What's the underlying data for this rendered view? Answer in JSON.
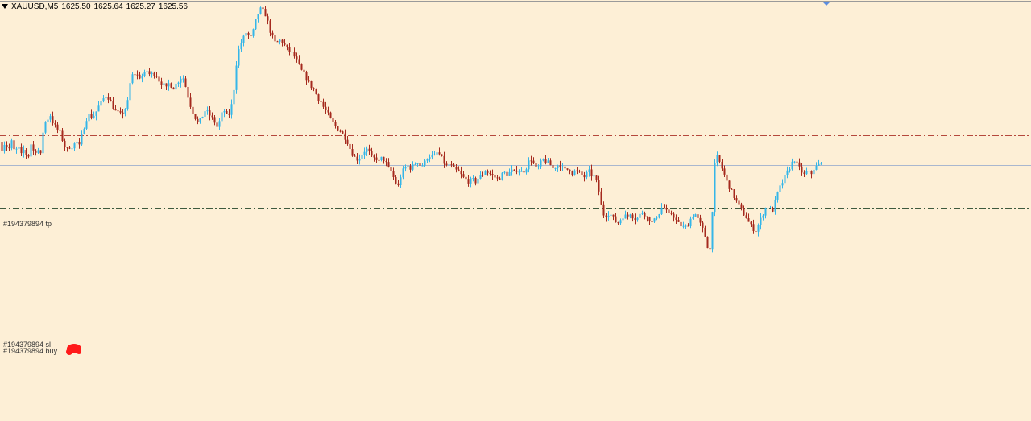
{
  "header": {
    "symbol": "XAUUSD,M5",
    "open": "1625.50",
    "high": "1625.64",
    "low": "1625.27",
    "close": "1625.56"
  },
  "colors": {
    "background": "#fdefd6",
    "bull": "#35b6e8",
    "bear": "#a52a1e",
    "tp_line": "#b5483c",
    "sl_line": "#b5483c",
    "buy_line": "#3e5a3e",
    "bid_line": "#a9b7cf",
    "marker": "#ff1a1a"
  },
  "chart_data": {
    "type": "candlestick",
    "y_scale": {
      "price_top": 1633.0,
      "price_bottom": 1614.0
    },
    "lines": [
      {
        "name": "tp",
        "label": "#194379894 tp",
        "price": 1626.9
      },
      {
        "name": "sl",
        "label": "#194379894 sl",
        "price": 1623.8
      },
      {
        "name": "buy",
        "label": "#194379894 buy",
        "price": 1623.6
      },
      {
        "name": "bid",
        "label": "",
        "price": 1625.56
      }
    ],
    "path": [
      [
        0,
        1626.6
      ],
      [
        4,
        1626.3
      ],
      [
        8,
        1626.6
      ],
      [
        12,
        1626.2
      ],
      [
        16,
        1626.6
      ],
      [
        20,
        1626.1
      ],
      [
        24,
        1626.4
      ],
      [
        28,
        1626.0
      ],
      [
        32,
        1626.3
      ],
      [
        36,
        1625.8
      ],
      [
        40,
        1626.5
      ],
      [
        44,
        1626.1
      ],
      [
        48,
        1626.3
      ],
      [
        52,
        1626.0
      ],
      [
        56,
        1627.4
      ],
      [
        60,
        1627.6
      ],
      [
        64,
        1627.8
      ],
      [
        68,
        1627.4
      ],
      [
        72,
        1627.2
      ],
      [
        76,
        1627.0
      ],
      [
        80,
        1626.6
      ],
      [
        84,
        1626.2
      ],
      [
        88,
        1626.4
      ],
      [
        92,
        1626.4
      ],
      [
        96,
        1626.6
      ],
      [
        100,
        1626.4
      ],
      [
        104,
        1627.0
      ],
      [
        108,
        1627.6
      ],
      [
        112,
        1627.8
      ],
      [
        116,
        1627.7
      ],
      [
        120,
        1627.9
      ],
      [
        124,
        1628.2
      ],
      [
        128,
        1628.4
      ],
      [
        132,
        1628.7
      ],
      [
        136,
        1628.6
      ],
      [
        140,
        1628.3
      ],
      [
        144,
        1628.0
      ],
      [
        148,
        1627.9
      ],
      [
        152,
        1627.8
      ],
      [
        156,
        1628.0
      ],
      [
        160,
        1628.4
      ],
      [
        164,
        1629.5
      ],
      [
        168,
        1629.7
      ],
      [
        172,
        1629.6
      ],
      [
        176,
        1629.5
      ],
      [
        180,
        1629.6
      ],
      [
        184,
        1629.8
      ],
      [
        188,
        1629.6
      ],
      [
        192,
        1629.7
      ],
      [
        196,
        1629.6
      ],
      [
        200,
        1629.3
      ],
      [
        204,
        1629.2
      ],
      [
        208,
        1629.0
      ],
      [
        212,
        1629.3
      ],
      [
        216,
        1629.0
      ],
      [
        220,
        1629.2
      ],
      [
        224,
        1629.4
      ],
      [
        228,
        1629.6
      ],
      [
        232,
        1629.1
      ],
      [
        236,
        1628.5
      ],
      [
        240,
        1628.0
      ],
      [
        244,
        1627.7
      ],
      [
        248,
        1627.4
      ],
      [
        252,
        1627.7
      ],
      [
        256,
        1628.0
      ],
      [
        260,
        1627.9
      ],
      [
        264,
        1627.7
      ],
      [
        268,
        1627.5
      ],
      [
        272,
        1627.2
      ],
      [
        276,
        1627.8
      ],
      [
        280,
        1628.0
      ],
      [
        284,
        1627.7
      ],
      [
        288,
        1628.0
      ],
      [
        292,
        1629.0
      ],
      [
        296,
        1630.5
      ],
      [
        300,
        1631.0
      ],
      [
        304,
        1631.3
      ],
      [
        308,
        1631.6
      ],
      [
        312,
        1631.2
      ],
      [
        316,
        1631.6
      ],
      [
        320,
        1632.2
      ],
      [
        324,
        1632.6
      ],
      [
        328,
        1632.5
      ],
      [
        332,
        1632.3
      ],
      [
        336,
        1631.7
      ],
      [
        340,
        1631.3
      ],
      [
        344,
        1631.0
      ],
      [
        348,
        1631.2
      ],
      [
        352,
        1631.1
      ],
      [
        356,
        1630.9
      ],
      [
        360,
        1630.7
      ],
      [
        364,
        1630.6
      ],
      [
        368,
        1630.4
      ],
      [
        372,
        1630.1
      ],
      [
        376,
        1629.8
      ],
      [
        380,
        1629.6
      ],
      [
        384,
        1629.3
      ],
      [
        388,
        1629.1
      ],
      [
        392,
        1628.9
      ],
      [
        396,
        1628.6
      ],
      [
        400,
        1628.4
      ],
      [
        404,
        1628.1
      ],
      [
        408,
        1627.9
      ],
      [
        412,
        1627.6
      ],
      [
        416,
        1627.4
      ],
      [
        420,
        1627.2
      ],
      [
        424,
        1627.1
      ],
      [
        428,
        1626.9
      ],
      [
        432,
        1626.7
      ],
      [
        436,
        1626.3
      ],
      [
        440,
        1626.0
      ],
      [
        444,
        1625.8
      ],
      [
        448,
        1625.9
      ],
      [
        452,
        1626.1
      ],
      [
        456,
        1626.3
      ],
      [
        460,
        1626.1
      ],
      [
        464,
        1625.8
      ],
      [
        468,
        1625.9
      ],
      [
        472,
        1625.7
      ],
      [
        476,
        1625.9
      ],
      [
        480,
        1625.7
      ],
      [
        484,
        1625.4
      ],
      [
        488,
        1625.2
      ],
      [
        492,
        1624.8
      ],
      [
        496,
        1624.6
      ],
      [
        500,
        1625.2
      ],
      [
        504,
        1625.4
      ],
      [
        508,
        1625.5
      ],
      [
        512,
        1625.4
      ],
      [
        516,
        1625.6
      ],
      [
        520,
        1625.7
      ],
      [
        524,
        1625.5
      ],
      [
        528,
        1625.6
      ],
      [
        532,
        1625.9
      ],
      [
        536,
        1626.0
      ],
      [
        540,
        1625.9
      ],
      [
        544,
        1626.1
      ],
      [
        548,
        1626.0
      ],
      [
        552,
        1625.7
      ],
      [
        556,
        1625.5
      ],
      [
        560,
        1625.6
      ],
      [
        564,
        1625.4
      ],
      [
        568,
        1625.3
      ],
      [
        572,
        1625.2
      ],
      [
        576,
        1625.0
      ],
      [
        580,
        1624.9
      ],
      [
        584,
        1624.8
      ],
      [
        588,
        1624.9
      ],
      [
        592,
        1624.8
      ],
      [
        596,
        1625.0
      ],
      [
        600,
        1625.1
      ],
      [
        604,
        1625.3
      ],
      [
        608,
        1625.2
      ],
      [
        612,
        1625.1
      ],
      [
        616,
        1625.0
      ],
      [
        620,
        1624.9
      ],
      [
        624,
        1625.1
      ],
      [
        628,
        1625.2
      ],
      [
        632,
        1625.1
      ],
      [
        636,
        1625.3
      ],
      [
        640,
        1625.2
      ],
      [
        644,
        1625.4
      ],
      [
        648,
        1625.2
      ],
      [
        652,
        1625.3
      ],
      [
        656,
        1625.5
      ],
      [
        660,
        1625.9
      ],
      [
        664,
        1625.6
      ],
      [
        668,
        1625.3
      ],
      [
        672,
        1625.6
      ],
      [
        676,
        1625.8
      ],
      [
        680,
        1625.7
      ],
      [
        684,
        1625.6
      ],
      [
        688,
        1625.4
      ],
      [
        692,
        1625.5
      ],
      [
        696,
        1625.6
      ],
      [
        700,
        1625.4
      ],
      [
        704,
        1625.3
      ],
      [
        708,
        1625.4
      ],
      [
        712,
        1625.2
      ],
      [
        716,
        1625.3
      ],
      [
        720,
        1625.2
      ],
      [
        724,
        1625.1
      ],
      [
        728,
        1625.0
      ],
      [
        732,
        1625.3
      ],
      [
        736,
        1625.1
      ],
      [
        740,
        1625.0
      ],
      [
        744,
        1624.6
      ],
      [
        748,
        1623.7
      ],
      [
        752,
        1623.2
      ],
      [
        756,
        1623.4
      ],
      [
        760,
        1623.3
      ],
      [
        764,
        1623.1
      ],
      [
        768,
        1622.9
      ],
      [
        772,
        1623.1
      ],
      [
        776,
        1623.3
      ],
      [
        780,
        1623.2
      ],
      [
        784,
        1623.4
      ],
      [
        788,
        1623.2
      ],
      [
        792,
        1623.1
      ],
      [
        796,
        1623.3
      ],
      [
        800,
        1623.5
      ],
      [
        804,
        1623.2
      ],
      [
        808,
        1623.1
      ],
      [
        812,
        1622.9
      ],
      [
        816,
        1623.2
      ],
      [
        820,
        1623.4
      ],
      [
        824,
        1623.7
      ],
      [
        828,
        1623.5
      ],
      [
        832,
        1623.3
      ],
      [
        836,
        1623.4
      ],
      [
        840,
        1623.1
      ],
      [
        844,
        1622.9
      ],
      [
        848,
        1622.8
      ],
      [
        852,
        1622.7
      ],
      [
        856,
        1622.9
      ],
      [
        860,
        1623.2
      ],
      [
        864,
        1623.4
      ],
      [
        868,
        1623.1
      ],
      [
        872,
        1622.8
      ],
      [
        876,
        1622.5
      ],
      [
        880,
        1621.9
      ],
      [
        884,
        1621.7
      ],
      [
        888,
        1625.4
      ],
      [
        892,
        1625.9
      ],
      [
        896,
        1625.6
      ],
      [
        900,
        1625.2
      ],
      [
        904,
        1624.8
      ],
      [
        908,
        1624.5
      ],
      [
        912,
        1624.2
      ],
      [
        916,
        1623.9
      ],
      [
        920,
        1623.6
      ],
      [
        924,
        1623.4
      ],
      [
        928,
        1623.2
      ],
      [
        932,
        1622.9
      ],
      [
        936,
        1622.7
      ],
      [
        940,
        1622.6
      ],
      [
        944,
        1622.9
      ],
      [
        948,
        1623.3
      ],
      [
        952,
        1623.6
      ],
      [
        956,
        1623.7
      ],
      [
        960,
        1623.4
      ],
      [
        964,
        1623.9
      ],
      [
        968,
        1624.4
      ],
      [
        972,
        1624.7
      ],
      [
        976,
        1625.0
      ],
      [
        980,
        1625.3
      ],
      [
        984,
        1625.6
      ],
      [
        988,
        1625.8
      ],
      [
        992,
        1625.5
      ],
      [
        996,
        1625.3
      ],
      [
        1000,
        1625.1
      ],
      [
        1004,
        1625.3
      ],
      [
        1008,
        1625.1
      ],
      [
        1012,
        1625.4
      ],
      [
        1016,
        1625.5
      ],
      [
        1018,
        1625.56
      ]
    ]
  }
}
